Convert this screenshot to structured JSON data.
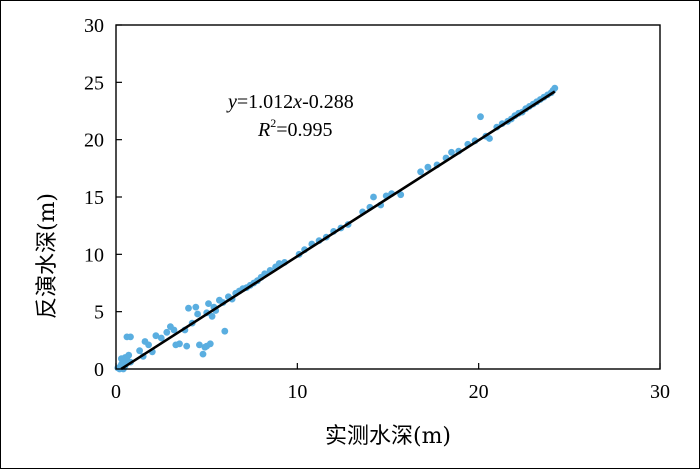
{
  "chart_data": {
    "type": "scatter",
    "xlabel": "实测水深(m)",
    "ylabel": "反演水深(m)",
    "xlim": [
      0,
      30
    ],
    "ylim": [
      0,
      30
    ],
    "xticks": [
      "0",
      "10",
      "20",
      "30"
    ],
    "yticks": [
      "0",
      "5",
      "10",
      "15",
      "20",
      "25",
      "30"
    ],
    "grid": false,
    "point_color": "#5aaee0",
    "fit_line": {
      "slope": 1.012,
      "intercept": -0.288,
      "r2": 0.995,
      "color": "#000000"
    },
    "annotations": {
      "equation_y": "y",
      "equation_rest": "=1.012",
      "equation_x": "x",
      "equation_end": "-0.288",
      "r2_R": "R",
      "r2_sup": "2",
      "r2_value": "=0.995"
    },
    "points": [
      [
        0.1,
        0.1
      ],
      [
        0.2,
        0.0
      ],
      [
        0.3,
        0.4
      ],
      [
        0.4,
        0.7
      ],
      [
        0.5,
        1.0
      ],
      [
        0.6,
        0.8
      ],
      [
        0.7,
        1.2
      ],
      [
        0.3,
        0.9
      ],
      [
        0.5,
        0.3
      ],
      [
        0.8,
        0.6
      ],
      [
        0.4,
        0.0
      ],
      [
        0.6,
        2.8
      ],
      [
        0.8,
        2.8
      ],
      [
        1.3,
        1.6
      ],
      [
        1.5,
        1.1
      ],
      [
        1.6,
        2.4
      ],
      [
        1.8,
        2.1
      ],
      [
        2.0,
        1.5
      ],
      [
        2.2,
        2.9
      ],
      [
        2.5,
        2.7
      ],
      [
        2.8,
        3.2
      ],
      [
        3.0,
        3.7
      ],
      [
        3.2,
        3.4
      ],
      [
        3.3,
        2.1
      ],
      [
        3.5,
        2.2
      ],
      [
        3.8,
        3.4
      ],
      [
        3.9,
        2.0
      ],
      [
        4.0,
        5.3
      ],
      [
        4.2,
        4.0
      ],
      [
        4.4,
        5.4
      ],
      [
        4.5,
        4.8
      ],
      [
        4.6,
        2.1
      ],
      [
        4.8,
        1.3
      ],
      [
        4.9,
        1.9
      ],
      [
        5.0,
        2.0
      ],
      [
        5.0,
        4.9
      ],
      [
        5.1,
        5.7
      ],
      [
        5.2,
        2.2
      ],
      [
        5.3,
        4.6
      ],
      [
        5.4,
        5.4
      ],
      [
        5.5,
        5.1
      ],
      [
        5.7,
        6.0
      ],
      [
        5.9,
        5.8
      ],
      [
        6.0,
        3.3
      ],
      [
        6.2,
        6.3
      ],
      [
        6.4,
        6.1
      ],
      [
        6.6,
        6.6
      ],
      [
        6.8,
        6.8
      ],
      [
        7.0,
        7.0
      ],
      [
        7.2,
        7.1
      ],
      [
        7.4,
        7.3
      ],
      [
        7.6,
        7.5
      ],
      [
        7.8,
        7.7
      ],
      [
        8.0,
        8.0
      ],
      [
        8.2,
        8.3
      ],
      [
        8.5,
        8.6
      ],
      [
        8.8,
        8.9
      ],
      [
        9.0,
        9.2
      ],
      [
        9.3,
        9.3
      ],
      [
        10.1,
        10.0
      ],
      [
        10.4,
        10.4
      ],
      [
        10.8,
        10.9
      ],
      [
        11.2,
        11.2
      ],
      [
        11.6,
        11.5
      ],
      [
        12.0,
        12.0
      ],
      [
        12.4,
        12.3
      ],
      [
        12.8,
        12.6
      ],
      [
        13.6,
        13.7
      ],
      [
        14.0,
        14.1
      ],
      [
        14.2,
        15.0
      ],
      [
        14.6,
        14.3
      ],
      [
        14.9,
        15.1
      ],
      [
        15.2,
        15.3
      ],
      [
        15.7,
        15.2
      ],
      [
        16.8,
        17.2
      ],
      [
        17.2,
        17.6
      ],
      [
        17.7,
        17.8
      ],
      [
        18.2,
        18.4
      ],
      [
        18.5,
        18.9
      ],
      [
        18.9,
        19.0
      ],
      [
        19.4,
        19.6
      ],
      [
        19.8,
        19.9
      ],
      [
        20.1,
        22.0
      ],
      [
        20.4,
        20.3
      ],
      [
        20.6,
        20.1
      ],
      [
        21.0,
        21.1
      ],
      [
        21.3,
        21.4
      ],
      [
        21.6,
        21.6
      ],
      [
        21.8,
        21.8
      ],
      [
        22.0,
        22.1
      ],
      [
        22.2,
        22.3
      ],
      [
        22.4,
        22.4
      ],
      [
        22.6,
        22.7
      ],
      [
        22.8,
        22.9
      ],
      [
        23.0,
        23.1
      ],
      [
        23.2,
        23.3
      ],
      [
        23.4,
        23.5
      ],
      [
        23.6,
        23.7
      ],
      [
        23.8,
        23.9
      ],
      [
        24.0,
        24.1
      ],
      [
        24.1,
        24.3
      ],
      [
        24.2,
        24.5
      ]
    ]
  }
}
